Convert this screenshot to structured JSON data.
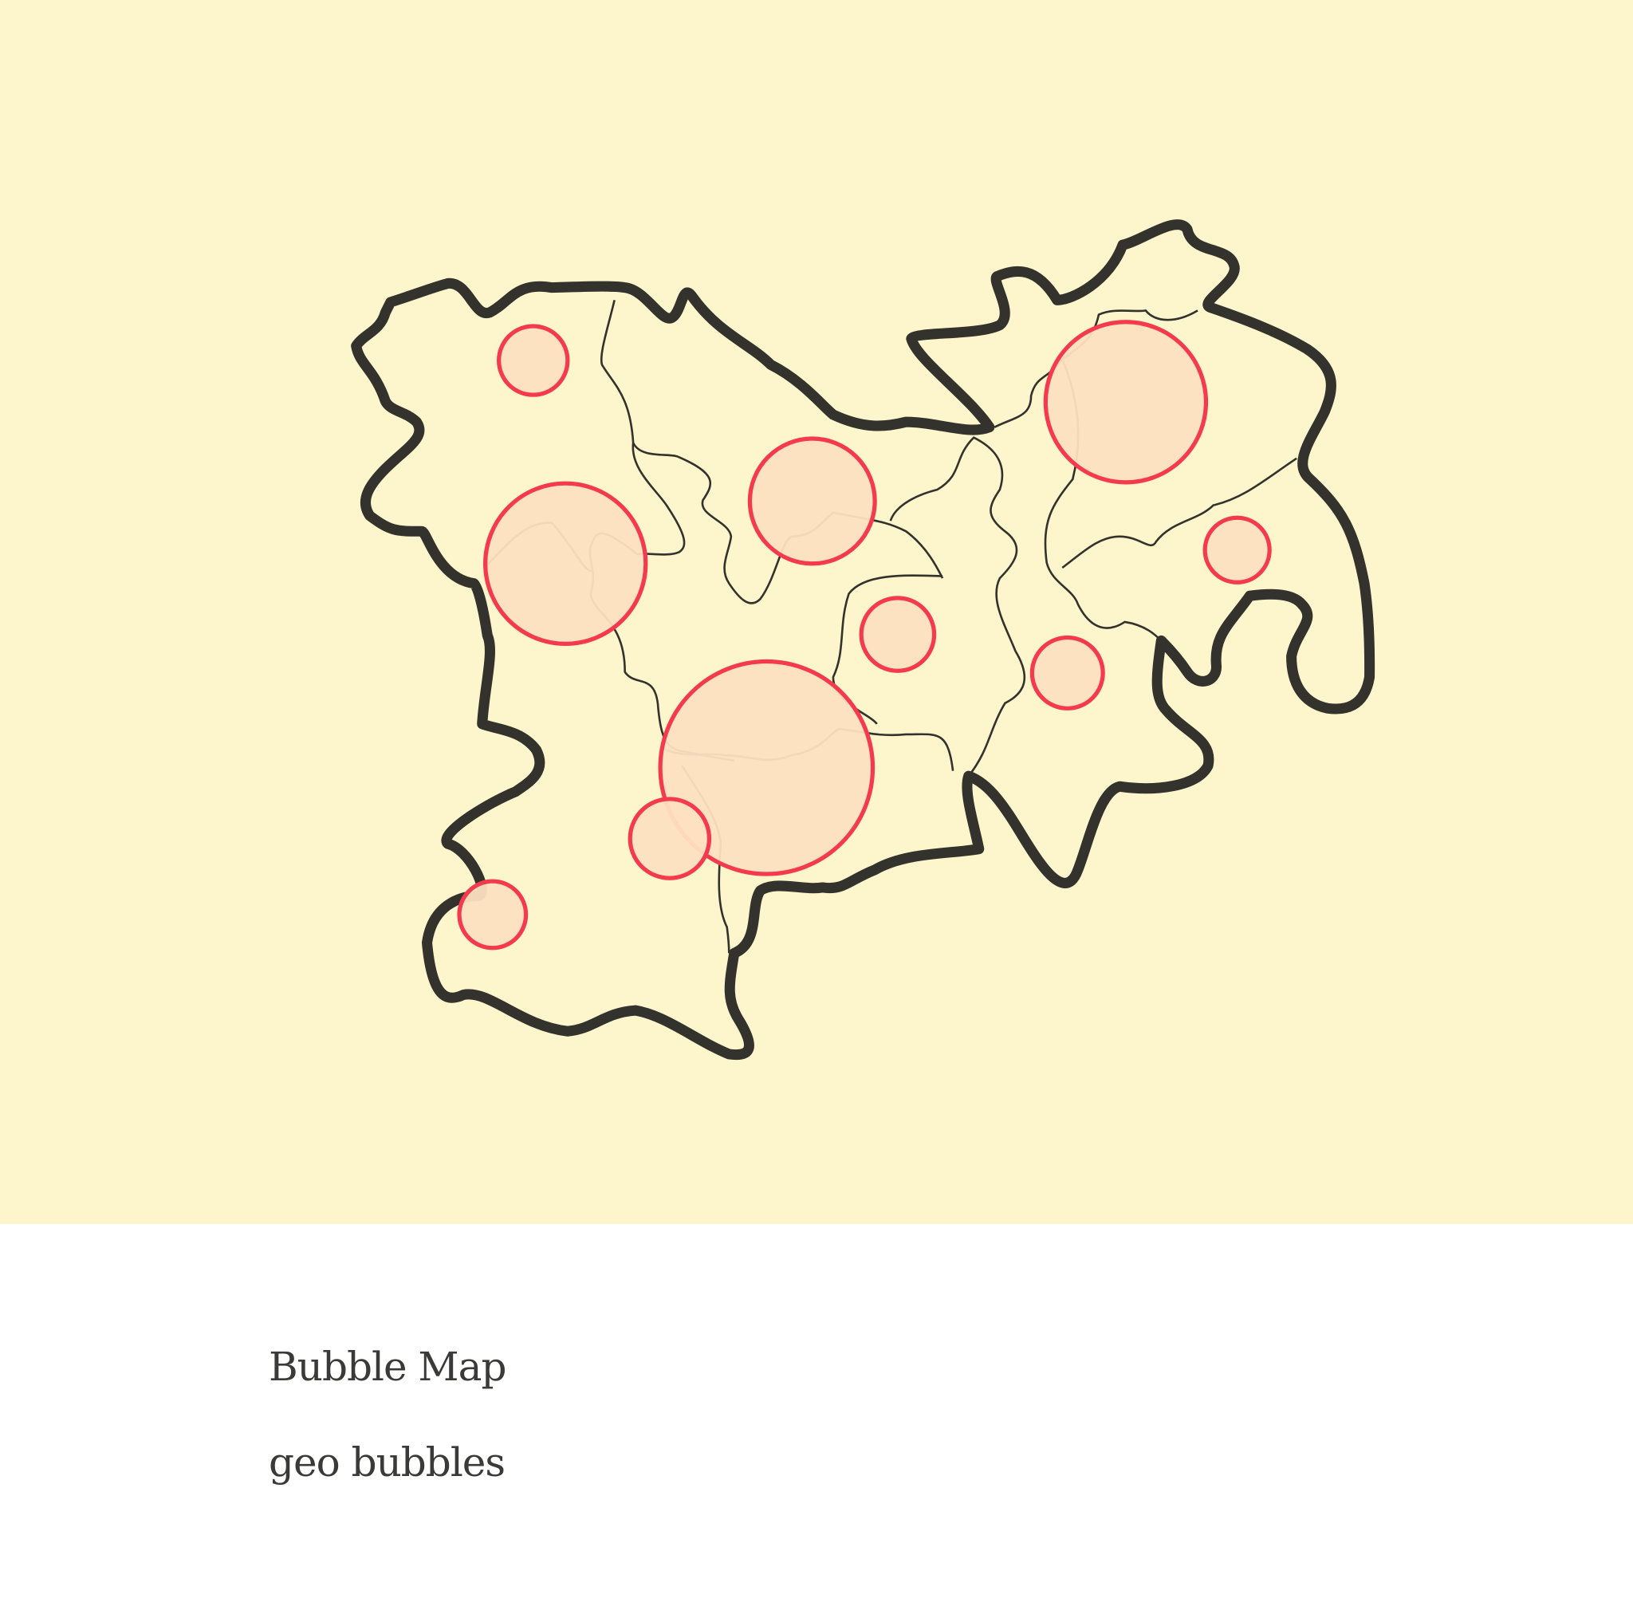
{
  "title": "Bubble Map",
  "subtitle": "geo bubbles"
}
